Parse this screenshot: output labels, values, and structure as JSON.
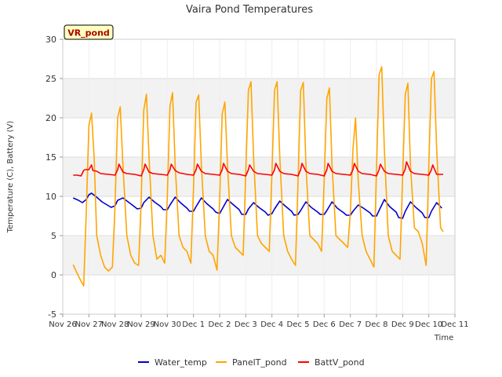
{
  "chart_data": {
    "type": "line",
    "title": "Vaira Pond Temperatures",
    "xlabel": "Time",
    "ylabel": "Temperature (C), Battery (V)",
    "ylim": [
      -5,
      30
    ],
    "yticks": [
      -5,
      0,
      5,
      10,
      15,
      20,
      25,
      30
    ],
    "xlim": [
      0,
      15
    ],
    "xtick_labels": [
      "Nov 26",
      "Nov 27",
      "Nov 28",
      "Nov 29",
      "Nov 30",
      "Dec 1",
      "Dec 2",
      "Dec 3",
      "Dec 4",
      "Dec 5",
      "Dec 6",
      "Dec 7",
      "Dec 8",
      "Dec 9",
      "Dec 10",
      "Dec 11"
    ],
    "grid": true,
    "legend_position": "bottom",
    "annotation": "VR_pond",
    "series": [
      {
        "name": "Water_temp",
        "color": "#0000cc",
        "x": [
          0.4,
          0.6,
          0.75,
          0.9,
          1.0,
          1.1,
          1.3,
          1.5,
          1.7,
          1.85,
          2.0,
          2.1,
          2.3,
          2.5,
          2.7,
          2.85,
          3.0,
          3.1,
          3.3,
          3.5,
          3.75,
          3.85,
          4.0,
          4.1,
          4.3,
          4.5,
          4.75,
          4.85,
          5.0,
          5.1,
          5.3,
          5.5,
          5.75,
          5.85,
          6.0,
          6.1,
          6.3,
          6.5,
          6.75,
          6.85,
          7.0,
          7.1,
          7.3,
          7.5,
          7.75,
          7.85,
          8.0,
          8.1,
          8.3,
          8.5,
          8.75,
          8.85,
          9.0,
          9.1,
          9.3,
          9.5,
          9.75,
          9.85,
          10.0,
          10.1,
          10.3,
          10.5,
          10.75,
          10.85,
          11.0,
          11.1,
          11.3,
          11.5,
          11.75,
          11.85,
          12.0,
          12.1,
          12.3,
          12.5,
          12.75,
          12.85,
          13.0,
          13.1,
          13.3,
          13.5,
          13.75,
          13.85,
          14.0,
          14.1,
          14.3,
          14.5
        ],
        "y": [
          9.8,
          9.5,
          9.2,
          9.6,
          10.2,
          10.4,
          9.9,
          9.3,
          8.9,
          8.6,
          8.8,
          9.5,
          9.8,
          9.3,
          8.8,
          8.4,
          8.5,
          9.2,
          9.9,
          9.3,
          8.7,
          8.3,
          8.3,
          8.9,
          9.9,
          9.2,
          8.5,
          8.1,
          8.1,
          8.7,
          9.8,
          9.1,
          8.4,
          8.0,
          7.8,
          8.4,
          9.6,
          9.0,
          8.3,
          7.7,
          7.7,
          8.4,
          9.2,
          8.6,
          8.0,
          7.6,
          7.8,
          8.4,
          9.4,
          8.8,
          8.1,
          7.6,
          7.7,
          8.2,
          9.3,
          8.6,
          8.0,
          7.7,
          7.7,
          8.2,
          9.3,
          8.5,
          7.9,
          7.6,
          7.6,
          8.1,
          8.9,
          8.5,
          7.9,
          7.5,
          7.5,
          8.2,
          9.6,
          8.7,
          8.0,
          7.3,
          7.2,
          8.1,
          9.3,
          8.6,
          7.9,
          7.3,
          7.3,
          8.1,
          9.2,
          8.5
        ]
      },
      {
        "name": "PanelT_pond",
        "color": "#ffa500",
        "x": [
          0.4,
          0.55,
          0.7,
          0.8,
          0.9,
          1.0,
          1.1,
          1.2,
          1.3,
          1.45,
          1.6,
          1.75,
          1.9,
          2.0,
          2.1,
          2.2,
          2.3,
          2.45,
          2.6,
          2.75,
          2.9,
          3.0,
          3.1,
          3.2,
          3.3,
          3.45,
          3.6,
          3.75,
          3.9,
          4.0,
          4.1,
          4.2,
          4.3,
          4.45,
          4.6,
          4.75,
          4.9,
          5.0,
          5.1,
          5.2,
          5.3,
          5.45,
          5.6,
          5.75,
          5.9,
          6.0,
          6.1,
          6.2,
          6.3,
          6.45,
          6.6,
          6.75,
          6.9,
          7.0,
          7.1,
          7.2,
          7.3,
          7.45,
          7.6,
          7.75,
          7.9,
          8.0,
          8.1,
          8.2,
          8.3,
          8.45,
          8.6,
          8.75,
          8.9,
          9.0,
          9.1,
          9.2,
          9.3,
          9.45,
          9.6,
          9.75,
          9.9,
          10.0,
          10.1,
          10.2,
          10.3,
          10.45,
          10.6,
          10.75,
          10.9,
          11.0,
          11.1,
          11.2,
          11.3,
          11.45,
          11.6,
          11.75,
          11.9,
          12.0,
          12.1,
          12.2,
          12.3,
          12.45,
          12.6,
          12.75,
          12.9,
          13.0,
          13.1,
          13.2,
          13.3,
          13.45,
          13.6,
          13.75,
          13.9,
          14.0,
          14.1,
          14.2,
          14.3,
          14.45,
          14.55
        ],
        "y": [
          1.3,
          0.2,
          -0.8,
          -1.4,
          8.0,
          19.0,
          20.6,
          15.0,
          5.0,
          2.5,
          1.0,
          0.5,
          1.0,
          9.0,
          20.0,
          21.4,
          14.0,
          5.0,
          2.5,
          1.5,
          1.2,
          9.5,
          21.0,
          23.0,
          15.0,
          5.0,
          2.0,
          2.5,
          1.5,
          10.0,
          21.5,
          23.2,
          14.0,
          5.0,
          3.5,
          3.0,
          1.5,
          11.0,
          22.0,
          22.9,
          14.0,
          5.0,
          3.0,
          2.5,
          0.6,
          9.5,
          20.5,
          22.0,
          14.0,
          5.0,
          3.5,
          3.0,
          2.5,
          13.0,
          23.5,
          24.6,
          15.0,
          5.0,
          4.0,
          3.5,
          3.0,
          13.0,
          23.5,
          24.6,
          15.0,
          5.0,
          3.0,
          2.0,
          1.2,
          12.0,
          23.5,
          24.5,
          14.0,
          5.0,
          4.5,
          4.0,
          3.0,
          12.0,
          22.5,
          23.8,
          14.0,
          5.0,
          4.5,
          4.0,
          3.5,
          8.0,
          16.0,
          20.0,
          12.0,
          5.0,
          3.0,
          2.0,
          1.0,
          13.5,
          25.5,
          26.5,
          16.0,
          5.0,
          3.0,
          2.5,
          2.0,
          12.5,
          23.0,
          24.4,
          14.0,
          6.0,
          5.5,
          4.0,
          1.2,
          14.0,
          25.0,
          25.9,
          16.0,
          6.0,
          5.5
        ]
      },
      {
        "name": "BattV_pond",
        "color": "#ff0000",
        "x": [
          0.4,
          0.55,
          0.7,
          0.8,
          0.85,
          1.0,
          1.1,
          1.15,
          1.3,
          1.45,
          1.75,
          2.0,
          2.1,
          2.15,
          2.3,
          2.45,
          2.75,
          3.0,
          3.1,
          3.15,
          3.3,
          3.45,
          3.75,
          4.0,
          4.1,
          4.15,
          4.3,
          4.45,
          4.75,
          5.0,
          5.1,
          5.15,
          5.3,
          5.45,
          5.75,
          6.0,
          6.1,
          6.15,
          6.3,
          6.45,
          6.75,
          7.0,
          7.1,
          7.15,
          7.3,
          7.45,
          7.75,
          8.0,
          8.1,
          8.15,
          8.3,
          8.45,
          8.75,
          9.0,
          9.1,
          9.15,
          9.3,
          9.45,
          9.75,
          10.0,
          10.1,
          10.15,
          10.3,
          10.45,
          10.75,
          11.0,
          11.1,
          11.15,
          11.3,
          11.45,
          11.75,
          12.0,
          12.1,
          12.15,
          12.3,
          12.45,
          12.75,
          13.0,
          13.1,
          13.15,
          13.3,
          13.45,
          13.75,
          14.0,
          14.1,
          14.15,
          14.3,
          14.55
        ],
        "y": [
          12.7,
          12.7,
          12.6,
          13.3,
          13.4,
          13.4,
          14.0,
          13.3,
          13.2,
          12.9,
          12.8,
          12.7,
          13.4,
          14.1,
          13.1,
          12.9,
          12.8,
          12.6,
          13.4,
          14.1,
          13.1,
          12.9,
          12.8,
          12.7,
          13.4,
          14.1,
          13.3,
          13.0,
          12.8,
          12.7,
          13.4,
          14.1,
          13.2,
          12.9,
          12.8,
          12.7,
          13.4,
          14.2,
          13.2,
          12.9,
          12.8,
          12.6,
          13.4,
          14.0,
          13.2,
          12.9,
          12.8,
          12.7,
          13.4,
          14.2,
          13.2,
          12.9,
          12.8,
          12.6,
          13.4,
          14.2,
          13.2,
          12.9,
          12.8,
          12.6,
          13.4,
          14.2,
          13.2,
          12.9,
          12.8,
          12.7,
          13.4,
          14.2,
          13.2,
          12.9,
          12.8,
          12.6,
          13.4,
          14.1,
          13.2,
          12.9,
          12.8,
          12.7,
          13.5,
          14.4,
          13.2,
          12.9,
          12.8,
          12.7,
          13.4,
          14.0,
          12.8,
          12.8
        ]
      }
    ]
  }
}
